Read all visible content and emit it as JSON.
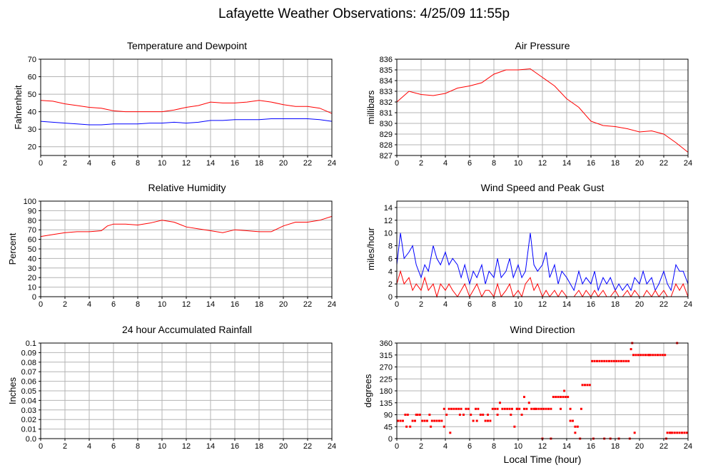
{
  "page": {
    "title": "Lafayette Weather Observations: 4/25/09 11:55p",
    "xlabel": "Local Time (hour)"
  },
  "chart_data": [
    {
      "id": "temperature",
      "type": "line",
      "title": "Temperature and Dewpoint",
      "xlabel": "",
      "ylabel": "Fahrenheit",
      "xlim": [
        0,
        24
      ],
      "ylim": [
        15,
        70
      ],
      "xticks": [
        0,
        2,
        4,
        6,
        8,
        10,
        12,
        14,
        16,
        18,
        20,
        22,
        24
      ],
      "yticks": [
        20,
        30,
        40,
        50,
        60,
        70
      ],
      "grid": true,
      "series": [
        {
          "color": "#ff0000",
          "x": [
            0,
            1,
            2,
            3,
            4,
            5,
            6,
            7,
            8,
            9,
            10,
            11,
            12,
            13,
            14,
            15,
            16,
            17,
            18,
            19,
            20,
            21,
            22,
            23,
            24
          ],
          "y": [
            46.5,
            46,
            44.5,
            43.5,
            42.5,
            42,
            40.5,
            40,
            40,
            40,
            40,
            41,
            42.5,
            43.5,
            45.5,
            45,
            45,
            45.5,
            46.5,
            45.5,
            44,
            43,
            43,
            42,
            39
          ]
        },
        {
          "color": "#0000ff",
          "x": [
            0,
            1,
            2,
            3,
            4,
            5,
            6,
            7,
            8,
            9,
            10,
            11,
            12,
            13,
            14,
            15,
            16,
            17,
            18,
            19,
            20,
            21,
            22,
            23,
            24
          ],
          "y": [
            34.5,
            34,
            33.5,
            33,
            32.5,
            32.5,
            33,
            33,
            33,
            33.5,
            33.5,
            34,
            33.5,
            34,
            35,
            35,
            35.5,
            35.5,
            35.5,
            36,
            36,
            36,
            36,
            35.5,
            34.5
          ]
        }
      ]
    },
    {
      "id": "pressure",
      "type": "line",
      "title": "Air Pressure",
      "xlabel": "",
      "ylabel": "millibars",
      "xlim": [
        0,
        24
      ],
      "ylim": [
        827,
        836
      ],
      "xticks": [
        0,
        2,
        4,
        6,
        8,
        10,
        12,
        14,
        16,
        18,
        20,
        22,
        24
      ],
      "yticks": [
        827,
        828,
        829,
        830,
        831,
        832,
        833,
        834,
        835,
        836
      ],
      "grid": true,
      "series": [
        {
          "color": "#ff0000",
          "x": [
            0,
            0.5,
            1,
            2,
            3,
            4,
            5,
            6,
            7,
            8,
            9,
            10,
            11,
            12,
            13,
            14,
            15,
            16,
            17,
            18,
            19,
            20,
            21,
            22,
            23,
            24
          ],
          "y": [
            832,
            832.5,
            833,
            832.7,
            832.6,
            832.8,
            833.3,
            833.5,
            833.8,
            834.6,
            835,
            835,
            835.1,
            834.3,
            833.5,
            832.3,
            831.5,
            830.2,
            829.8,
            829.7,
            829.5,
            829.2,
            829.3,
            829.0,
            828.2,
            827.3
          ]
        }
      ]
    },
    {
      "id": "humidity",
      "type": "line",
      "title": "Relative Humidity",
      "xlabel": "",
      "ylabel": "Percent",
      "xlim": [
        0,
        24
      ],
      "ylim": [
        0,
        100
      ],
      "xticks": [
        0,
        2,
        4,
        6,
        8,
        10,
        12,
        14,
        16,
        18,
        20,
        22,
        24
      ],
      "yticks": [
        0,
        10,
        20,
        30,
        40,
        50,
        60,
        70,
        80,
        90,
        100
      ],
      "grid": true,
      "series": [
        {
          "color": "#ff0000",
          "x": [
            0,
            1,
            2,
            3,
            4,
            5,
            5.5,
            6,
            7,
            8,
            9,
            10,
            11,
            12,
            13,
            14,
            15,
            16,
            17,
            18,
            19,
            20,
            21,
            22,
            23,
            24
          ],
          "y": [
            63,
            65,
            67,
            68,
            68,
            69,
            74,
            76,
            76,
            75,
            77,
            80,
            78,
            73,
            71,
            69,
            67,
            70,
            69,
            68,
            68,
            74,
            78,
            78,
            80,
            84
          ]
        }
      ]
    },
    {
      "id": "wind",
      "type": "line",
      "title": "Wind Speed and Peak Gust",
      "xlabel": "",
      "ylabel": "miles/hour",
      "xlim": [
        0,
        24
      ],
      "ylim": [
        0,
        15
      ],
      "xticks": [
        0,
        2,
        4,
        6,
        8,
        10,
        12,
        14,
        16,
        18,
        20,
        22,
        24
      ],
      "yticks": [
        0,
        2,
        4,
        6,
        8,
        10,
        12,
        14
      ],
      "grid": true,
      "series": [
        {
          "color": "#0000ff",
          "x": [
            0,
            0.3,
            0.6,
            1,
            1.3,
            1.6,
            2,
            2.3,
            2.6,
            3,
            3.3,
            3.6,
            4,
            4.3,
            4.6,
            5,
            5.3,
            5.6,
            6,
            6.3,
            6.6,
            7,
            7.3,
            7.6,
            8,
            8.3,
            8.6,
            9,
            9.3,
            9.6,
            10,
            10.3,
            10.6,
            11,
            11.3,
            11.6,
            12,
            12.3,
            12.6,
            13,
            13.3,
            13.6,
            14,
            14.3,
            14.6,
            15,
            15.3,
            15.6,
            16,
            16.3,
            16.6,
            17,
            17.3,
            17.6,
            18,
            18.3,
            18.6,
            19,
            19.3,
            19.6,
            20,
            20.3,
            20.6,
            21,
            21.3,
            21.6,
            22,
            22.3,
            22.6,
            23,
            23.3,
            23.6,
            24
          ],
          "y": [
            5,
            10,
            6,
            7,
            8,
            5,
            3,
            5,
            4,
            8,
            6,
            5,
            7,
            5,
            6,
            5,
            3,
            5,
            2,
            4,
            3,
            5,
            2,
            4,
            3,
            6,
            3,
            4,
            6,
            3,
            5,
            3,
            4,
            10,
            5,
            4,
            5,
            7,
            3,
            5,
            2,
            4,
            3,
            2,
            1,
            4,
            2,
            3,
            2,
            4,
            1,
            3,
            2,
            3,
            1,
            2,
            1,
            2,
            1,
            3,
            2,
            4,
            2,
            3,
            1,
            2,
            4,
            2,
            1,
            5,
            4,
            4,
            2
          ]
        },
        {
          "color": "#ff0000",
          "x": [
            0,
            0.3,
            0.6,
            1,
            1.3,
            1.6,
            2,
            2.3,
            2.6,
            3,
            3.3,
            3.6,
            4,
            4.3,
            4.6,
            5,
            5.3,
            5.6,
            6,
            6.3,
            6.6,
            7,
            7.3,
            7.6,
            8,
            8.3,
            8.6,
            9,
            9.3,
            9.6,
            10,
            10.3,
            10.6,
            11,
            11.3,
            11.6,
            12,
            12.3,
            12.6,
            13,
            13.3,
            13.6,
            14,
            14.3,
            14.6,
            15,
            15.3,
            15.6,
            16,
            16.3,
            16.6,
            17,
            17.3,
            17.6,
            18,
            18.3,
            18.6,
            19,
            19.3,
            19.6,
            20,
            20.3,
            20.6,
            21,
            21.3,
            21.6,
            22,
            22.3,
            22.6,
            23,
            23.3,
            23.6,
            24
          ],
          "y": [
            2,
            4,
            2,
            3,
            1,
            2,
            1,
            3,
            1,
            2,
            0,
            2,
            1,
            2,
            1,
            0,
            1,
            2,
            0,
            1,
            2,
            0,
            1,
            1,
            0,
            2,
            0,
            1,
            2,
            0,
            1,
            0,
            2,
            3,
            1,
            2,
            0,
            1,
            0,
            1,
            0,
            1,
            0,
            0,
            0,
            1,
            0,
            1,
            0,
            1,
            0,
            1,
            0,
            0,
            1,
            0,
            0,
            1,
            0,
            1,
            0,
            0,
            1,
            0,
            1,
            0,
            1,
            0,
            0,
            2,
            1,
            2,
            0
          ]
        }
      ]
    },
    {
      "id": "rainfall",
      "type": "line",
      "title": "24 hour Accumulated Rainfall",
      "xlabel": "",
      "ylabel": "Inches",
      "xlim": [
        0,
        24
      ],
      "ylim": [
        0,
        0.1
      ],
      "xticks": [
        0,
        2,
        4,
        6,
        8,
        10,
        12,
        14,
        16,
        18,
        20,
        22,
        24
      ],
      "yticks": [
        0.0,
        0.01,
        0.02,
        0.03,
        0.04,
        0.05,
        0.06,
        0.07,
        0.08,
        0.09,
        0.1
      ],
      "ytick_labels": [
        "0.0",
        "0.01",
        "0.02",
        "0.03",
        "0.04",
        "0.05",
        "0.06",
        "0.07",
        "0.08",
        "0.09",
        "0.1"
      ],
      "grid": true,
      "series": [
        {
          "color": "#ff0000",
          "x": [
            0,
            24
          ],
          "y": [
            0,
            0
          ]
        }
      ]
    },
    {
      "id": "direction",
      "type": "scatter",
      "title": "Wind Direction",
      "xlabel": "",
      "ylabel": "degrees",
      "xlim": [
        0,
        24
      ],
      "ylim": [
        0,
        360
      ],
      "xticks": [
        0,
        2,
        4,
        6,
        8,
        10,
        12,
        14,
        16,
        18,
        20,
        22,
        24
      ],
      "yticks": [
        0,
        45,
        90,
        135,
        180,
        225,
        270,
        315,
        360
      ],
      "grid": true,
      "series": [
        {
          "color": "#ff0000",
          "x": [
            0.1,
            0.3,
            0.5,
            0.7,
            0.9,
            1.1,
            1.3,
            1.5,
            1.7,
            1.9,
            2.1,
            2.3,
            2.5,
            2.7,
            2.9,
            3.1,
            3.3,
            3.5,
            3.7,
            3.9,
            4.1,
            4.3,
            4.5,
            4.7,
            4.9,
            5.1,
            5.3,
            5.5,
            5.7,
            5.9,
            6.1,
            6.3,
            6.5,
            6.7,
            6.9,
            7.1,
            7.3,
            7.5,
            7.7,
            7.9,
            8.1,
            8.3,
            8.5,
            8.7,
            8.9,
            9.1,
            9.3,
            9.5,
            9.7,
            9.9,
            10.1,
            10.3,
            10.5,
            10.7,
            10.9,
            11.1,
            11.3,
            11.5,
            11.7,
            11.9,
            12.1,
            12.3,
            12.5,
            12.7,
            12.9,
            13.1,
            13.3,
            13.5,
            13.7,
            13.9,
            14.1,
            14.3,
            14.5,
            14.7,
            14.9,
            15.1,
            15.3,
            15.5,
            15.7,
            15.9,
            16.1,
            16.3,
            16.5,
            16.7,
            16.9,
            17.1,
            17.3,
            17.5,
            17.7,
            17.9,
            18.1,
            18.3,
            18.5,
            18.7,
            18.9,
            19.1,
            19.3,
            19.5,
            19.7,
            19.9,
            20.1,
            20.3,
            20.5,
            20.7,
            20.9,
            21.1,
            21.3,
            21.5,
            21.7,
            21.9,
            22.1,
            22.3,
            22.5,
            22.7,
            22.9,
            23.1,
            23.3,
            23.5,
            23.7,
            23.9,
            0.8,
            1.6,
            2.8,
            3.9,
            4.4,
            5.2,
            6.6,
            7.5,
            8.3,
            9.4,
            9.9,
            10.5,
            11.4,
            12.0,
            12.7,
            13.5,
            13.8,
            14.3,
            14.7,
            15.2,
            16.2,
            17.1,
            17.6,
            18.3,
            19.2,
            19.4,
            19.6,
            20.8,
            22.2,
            23.1,
            22.6
          ],
          "y": [
            67,
            67,
            67,
            90,
            90,
            45,
            67,
            67,
            90,
            90,
            67,
            67,
            67,
            90,
            67,
            67,
            67,
            67,
            67,
            45,
            90,
            112,
            112,
            112,
            112,
            112,
            112,
            90,
            112,
            112,
            90,
            67,
            112,
            112,
            90,
            90,
            67,
            67,
            67,
            112,
            112,
            112,
            135,
            112,
            112,
            112,
            112,
            112,
            45,
            112,
            112,
            90,
            112,
            112,
            135,
            112,
            112,
            112,
            112,
            112,
            112,
            112,
            112,
            112,
            157,
            157,
            157,
            157,
            157,
            157,
            157,
            67,
            67,
            45,
            45,
            0,
            202,
            202,
            202,
            202,
            292,
            292,
            292,
            292,
            292,
            292,
            292,
            292,
            292,
            292,
            292,
            292,
            292,
            292,
            292,
            292,
            337,
            315,
            315,
            315,
            315,
            315,
            315,
            315,
            315,
            315,
            315,
            315,
            315,
            315,
            315,
            22,
            22,
            22,
            22,
            22,
            22,
            22,
            22,
            22,
            45,
            90,
            45,
            112,
            22,
            90,
            67,
            90,
            90,
            90,
            112,
            157,
            112,
            0,
            0,
            112,
            180,
            112,
            22,
            112,
            0,
            0,
            0,
            0,
            0,
            360,
            22,
            315,
            0,
            360,
            22
          ]
        }
      ]
    }
  ]
}
